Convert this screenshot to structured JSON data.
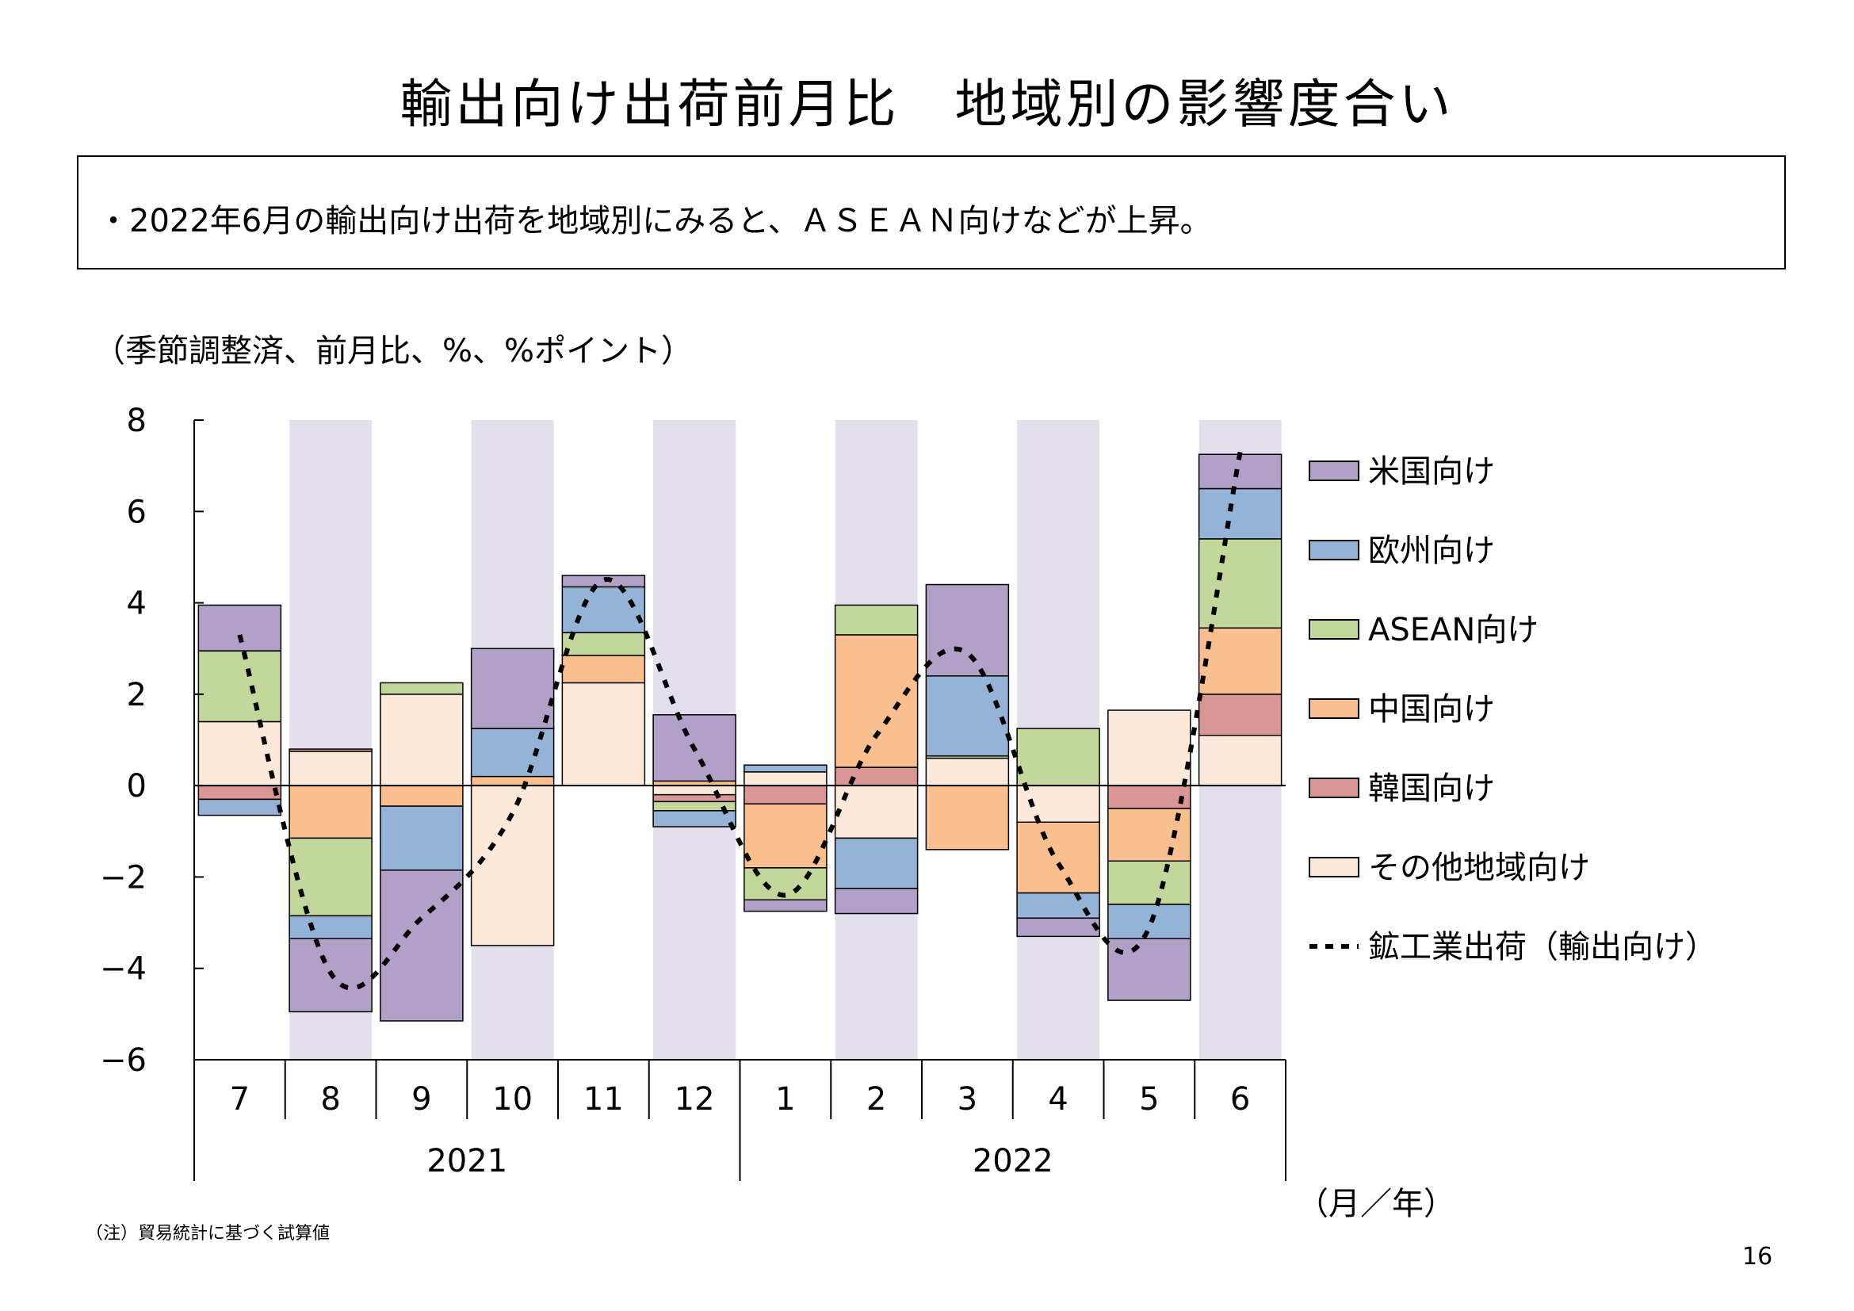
{
  "title": "輸出向け出荷前月比　地域別の影響度合い",
  "summary": "・2022年6月の輸出向け出荷を地域別にみると、ＡＳＥＡＮ向けなどが上昇。",
  "unit_note": "（季節調整済、前月比、%、%ポイント）",
  "footnote": "（注）貿易統計に基づく試算値",
  "page_number": "16",
  "chart_data": {
    "type": "bar",
    "stacked": true,
    "categories": [
      "7",
      "8",
      "9",
      "10",
      "11",
      "12",
      "1",
      "2",
      "3",
      "4",
      "5",
      "6"
    ],
    "year_groups": [
      {
        "label": "2021",
        "start": 0,
        "end": 5
      },
      {
        "label": "2022",
        "start": 6,
        "end": 11
      }
    ],
    "xlabel": "（月／年）",
    "ylim": [
      -6,
      8
    ],
    "yticks": [
      8,
      6,
      4,
      2,
      0,
      -2,
      -4,
      -6
    ],
    "ytick_labels": [
      "8",
      "6",
      "4",
      "2",
      "0",
      "−2",
      "−4",
      "−6"
    ],
    "shaded_categories": [
      1,
      3,
      5,
      7,
      9,
      11
    ],
    "shade_color": "#e4dfec",
    "series": [
      {
        "name": "その他地域向け",
        "color": "#fde9d9",
        "values": [
          1.4,
          0.75,
          2.0,
          -3.5,
          2.25,
          -0.2,
          0.3,
          -1.15,
          0.6,
          -0.8,
          1.65,
          1.1
        ]
      },
      {
        "name": "韓国向け",
        "color": "#da9694",
        "values": [
          -0.3,
          0.05,
          0.0,
          0.0,
          0.0,
          -0.15,
          -0.4,
          0.4,
          0.0,
          0.0,
          -0.5,
          0.9
        ]
      },
      {
        "name": "中国向け",
        "color": "#fabf8f",
        "values": [
          0.0,
          -1.15,
          -0.45,
          0.2,
          0.6,
          0.1,
          -1.4,
          2.9,
          -1.4,
          -1.55,
          -1.15,
          1.45
        ]
      },
      {
        "name": "ASEAN向け",
        "color": "#c4d79b",
        "values": [
          1.55,
          -1.7,
          0.25,
          0.0,
          0.5,
          -0.2,
          -0.7,
          0.65,
          0.05,
          1.25,
          -0.95,
          1.95
        ]
      },
      {
        "name": "欧州向け",
        "color": "#95b3d7",
        "values": [
          -0.35,
          -0.5,
          -1.4,
          1.05,
          1.0,
          -0.35,
          0.15,
          -1.1,
          1.75,
          -0.55,
          -0.75,
          1.1
        ]
      },
      {
        "name": "米国向け",
        "color": "#b1a0c7",
        "values": [
          1.0,
          -1.6,
          -3.3,
          1.75,
          0.25,
          1.45,
          -0.25,
          -0.55,
          2.0,
          -0.4,
          -1.35,
          0.75
        ]
      }
    ],
    "line_series": {
      "name": "鉱工業出荷（輸出向け）",
      "values": [
        3.3,
        -4.1,
        -2.9,
        -0.6,
        4.5,
        0.8,
        -2.4,
        1.1,
        2.9,
        -1.7,
        -3.1,
        7.3
      ]
    },
    "legend": {
      "placement": "right",
      "items": [
        "米国向け",
        "欧州向け",
        "ASEAN向け",
        "中国向け",
        "韓国向け",
        "その他地域向け",
        "鉱工業出荷（輸出向け）"
      ]
    }
  }
}
